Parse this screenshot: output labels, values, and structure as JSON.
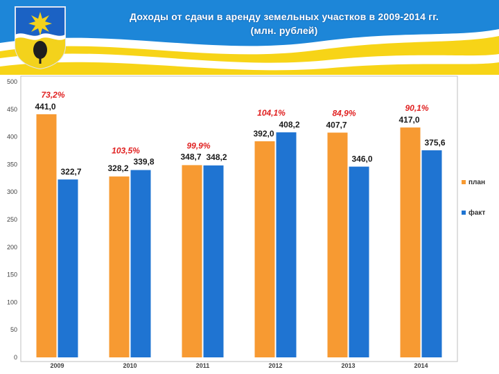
{
  "title": {
    "line1": "Доходы от сдачи в аренду земельных участков в 2009-2014 гг.",
    "line2": "(млн. рублей)"
  },
  "emblem": {
    "icon": "city-coat-of-arms-icon"
  },
  "colors": {
    "header_blue": "#1d86d8",
    "header_yellow": "#f7d417",
    "plan": "#f79a32",
    "fact": "#1f74d2",
    "percent_text": "#e02020"
  },
  "chart_data": {
    "type": "bar",
    "title": "",
    "xlabel": "",
    "ylabel": "",
    "categories": [
      "2009",
      "2010",
      "2011",
      "2012",
      "2013",
      "2014"
    ],
    "series": [
      {
        "name": "план",
        "values": [
          441.0,
          328.2,
          348.7,
          392.0,
          407.7,
          417.0
        ],
        "labels": [
          "441,0",
          "328,2",
          "348,7",
          "392,0",
          "407,7",
          "417,0"
        ],
        "color": "#f79a32"
      },
      {
        "name": "факт",
        "values": [
          322.7,
          339.8,
          348.2,
          408.2,
          346.0,
          375.6
        ],
        "labels": [
          "322,7",
          "339,8",
          "348,2",
          "408,2",
          "346,0",
          "375,6"
        ],
        "color": "#1f74d2"
      }
    ],
    "percent_annotations": [
      "73,2%",
      "103,5%",
      "99,9%",
      "104,1%",
      "84,9%",
      "90,1%"
    ],
    "ylim": [
      0,
      500
    ],
    "yticks": [
      0,
      50,
      100,
      150,
      200,
      250,
      300,
      350,
      400,
      450,
      500
    ],
    "grid": false,
    "legend_position": "right"
  }
}
